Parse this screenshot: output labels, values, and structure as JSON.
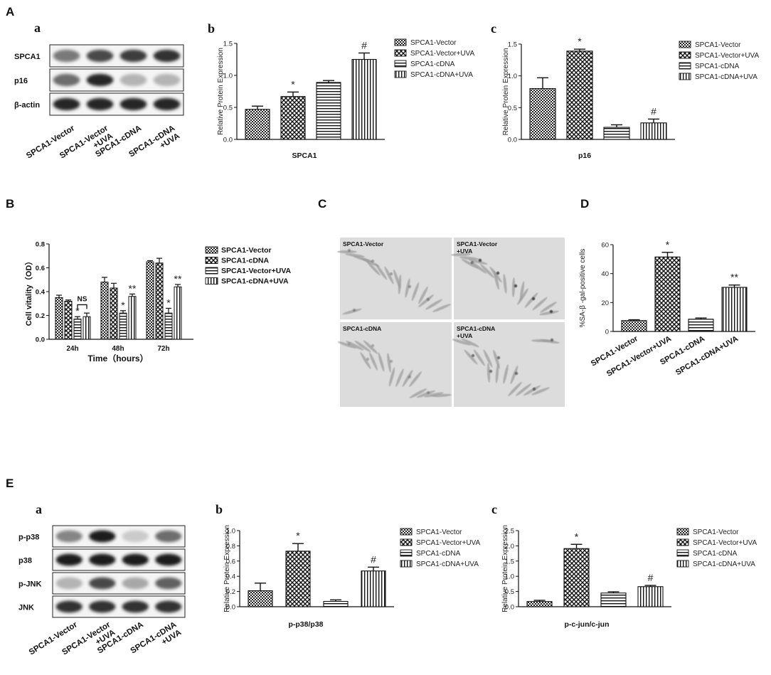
{
  "panels": {
    "A": "A",
    "B": "B",
    "C": "C",
    "D": "D",
    "E": "E",
    "A_a": "a",
    "A_b": "b",
    "A_c": "c",
    "E_a": "a",
    "E_b": "b",
    "E_c": "c"
  },
  "blot_A": {
    "rows": [
      "SPCA1",
      "p16",
      "β-actin"
    ],
    "lanes": [
      [
        "SPCA1-Vector"
      ],
      [
        "SPCA1-Vector",
        "+UVA"
      ],
      [
        "SPCA1-cDNA"
      ],
      [
        "SPCA1-cDNA",
        "+UVA"
      ]
    ],
    "intensity": [
      [
        0.55,
        0.75,
        0.8,
        0.85
      ],
      [
        0.6,
        0.9,
        0.3,
        0.3
      ],
      [
        0.9,
        0.9,
        0.9,
        0.9
      ]
    ]
  },
  "blot_E": {
    "rows": [
      "p-p38",
      "p38",
      "p-JNK",
      "JNK"
    ],
    "lanes": [
      [
        "SPCA1-Vector"
      ],
      [
        "SPCA1-Vector",
        "+UVA"
      ],
      [
        "SPCA1-cDNA"
      ],
      [
        "SPCA1-cDNA",
        "+UVA"
      ]
    ],
    "intensity": [
      [
        0.5,
        0.95,
        0.2,
        0.6
      ],
      [
        0.95,
        0.95,
        0.95,
        0.95
      ],
      [
        0.3,
        0.75,
        0.35,
        0.65
      ],
      [
        0.85,
        0.85,
        0.85,
        0.85
      ]
    ]
  },
  "micrograph_C": {
    "tiles": [
      [
        "SPCA1-Vector"
      ],
      [
        "SPCA1-Vector",
        "+UVA"
      ],
      [
        "SPCA1-cDNA"
      ],
      [
        "SPCA1-cDNA",
        "+UVA"
      ]
    ]
  },
  "chart_data": [
    {
      "id": "A_b",
      "type": "bar",
      "categories": [
        "SPCA1-Vector",
        "SPCA1-Vector+UVA",
        "SPCA1-cDNA",
        "SPCA1-cDNA+UVA"
      ],
      "values": [
        0.47,
        0.67,
        0.89,
        1.25
      ],
      "errors": [
        0.05,
        0.07,
        0.03,
        0.1
      ],
      "annotations": [
        "",
        "*",
        "",
        "#"
      ],
      "patterns": [
        "dots",
        "check",
        "hlines",
        "vlines"
      ],
      "ylabel": "Relative Protein Expression",
      "xlabel": "SPCA1",
      "ylim": [
        0,
        1.5
      ],
      "yticks": [
        "0.0",
        "0.5",
        "1.0",
        "1.5"
      ],
      "legend": [
        "SPCA1-Vector",
        "SPCA1-Vector+UVA",
        "SPCA1-cDNA",
        "SPCA1-cDNA+UVA"
      ],
      "legend_position": "right"
    },
    {
      "id": "A_c",
      "type": "bar",
      "categories": [
        "SPCA1-Vector",
        "SPCA1-Vector+UVA",
        "SPCA1-cDNA",
        "SPCA1-cDNA+UVA"
      ],
      "values": [
        0.8,
        1.39,
        0.19,
        0.26
      ],
      "errors": [
        0.17,
        0.03,
        0.04,
        0.06
      ],
      "annotations": [
        "",
        "*",
        "",
        "#"
      ],
      "patterns": [
        "dots",
        "check",
        "hlines",
        "vlines"
      ],
      "ylabel": "Relative Protein Expression",
      "xlabel": "p16",
      "ylim": [
        0,
        1.5
      ],
      "yticks": [
        "0.0",
        "0.5",
        "1.0",
        "1.5"
      ],
      "legend": [
        "SPCA1-Vector",
        "SPCA1-Vector+UVA",
        "SPCA1-cDNA",
        "SPCA1-cDNA+UVA"
      ],
      "legend_position": "right"
    },
    {
      "id": "B",
      "type": "bar",
      "categories": [
        "24h",
        "48h",
        "72h"
      ],
      "series": [
        {
          "name": "SPCA1-Vector",
          "values": [
            0.35,
            0.48,
            0.65
          ],
          "errors": [
            0.02,
            0.04,
            0.01
          ],
          "pattern": "dots"
        },
        {
          "name": "SPCA1-cDNA",
          "values": [
            0.32,
            0.43,
            0.64
          ],
          "errors": [
            0.01,
            0.04,
            0.04
          ],
          "pattern": "check"
        },
        {
          "name": "SPCA1-Vector+UVA",
          "values": [
            0.17,
            0.22,
            0.22
          ],
          "errors": [
            0.02,
            0.02,
            0.04
          ],
          "pattern": "hlines"
        },
        {
          "name": "SPCA1-cDNA+UVA",
          "values": [
            0.19,
            0.36,
            0.44
          ],
          "errors": [
            0.03,
            0.02,
            0.02
          ],
          "pattern": "vlines"
        }
      ],
      "annotations": [
        {
          "category": 0,
          "series": 2,
          "text": "*"
        },
        {
          "category": 1,
          "series": 2,
          "text": "*"
        },
        {
          "category": 1,
          "series": 3,
          "text": "**"
        },
        {
          "category": 2,
          "series": 2,
          "text": "*"
        },
        {
          "category": 2,
          "series": 3,
          "text": "**"
        }
      ],
      "bracket": {
        "category": 0,
        "from": 2,
        "to": 3,
        "text": "NS"
      },
      "ylabel": "Cell vitality（OD）",
      "xlabel": "Time（hours）",
      "ylim": [
        0,
        0.8
      ],
      "yticks": [
        "0.0",
        "0.2",
        "0.4",
        "0.6",
        "0.8"
      ],
      "legend_position": "right"
    },
    {
      "id": "D",
      "type": "bar",
      "categories": [
        "SPCA1-Vector",
        "SPCA1-Vector+UVA",
        "SPCA1-cDNA",
        "SPCA1-cDNA+UVA"
      ],
      "values": [
        7.5,
        51.5,
        8.5,
        30.5
      ],
      "errors": [
        0.6,
        3.2,
        0.8,
        1.6
      ],
      "annotations": [
        "",
        "*",
        "",
        "**"
      ],
      "patterns": [
        "dots",
        "check",
        "hlines",
        "vlines"
      ],
      "ylabel": "%SA-β -gal-positive cells",
      "xlabel": "",
      "ylim": [
        0,
        60
      ],
      "yticks": [
        "0",
        "20",
        "40",
        "60"
      ],
      "legend": []
    },
    {
      "id": "E_b",
      "type": "bar",
      "categories": [
        "SPCA1-Vector",
        "SPCA1-Vector+UVA",
        "SPCA1-cDNA",
        "SPCA1-cDNA+UVA"
      ],
      "values": [
        0.21,
        0.73,
        0.07,
        0.47
      ],
      "errors": [
        0.1,
        0.1,
        0.02,
        0.05
      ],
      "annotations": [
        "",
        "*",
        "",
        "#"
      ],
      "patterns": [
        "dots",
        "check",
        "hlines",
        "vlines"
      ],
      "ylabel": "Relative Protein Expression",
      "xlabel": "p-p38/p38",
      "ylim": [
        0,
        1.0
      ],
      "yticks": [
        "0.0",
        "0.2",
        "0.4",
        "0.6",
        "0.8",
        "1.0"
      ],
      "legend": [
        "SPCA1-Vector",
        "SPCA1-Vector+UVA",
        "SPCA1-cDNA",
        "SPCA1-cDNA+UVA"
      ],
      "legend_position": "right"
    },
    {
      "id": "E_c",
      "type": "bar",
      "categories": [
        "SPCA1-Vector",
        "SPCA1-Vector+UVA",
        "SPCA1-cDNA",
        "SPCA1-cDNA+UVA"
      ],
      "values": [
        0.17,
        1.91,
        0.45,
        0.66
      ],
      "errors": [
        0.04,
        0.14,
        0.04,
        0.04
      ],
      "annotations": [
        "",
        "*",
        "",
        "#"
      ],
      "patterns": [
        "dots",
        "check",
        "hlines",
        "vlines"
      ],
      "ylabel": "Relative Protein Expression",
      "xlabel": "p-c-jun/c-jun",
      "ylim": [
        0,
        2.5
      ],
      "yticks": [
        "0.0",
        "0.5",
        "1.0",
        "1.5",
        "2.0",
        "2.5"
      ],
      "legend": [
        "SPCA1-Vector",
        "SPCA1-Vector+UVA",
        "SPCA1-cDNA",
        "SPCA1-cDNA+UVA"
      ],
      "legend_position": "right"
    }
  ]
}
